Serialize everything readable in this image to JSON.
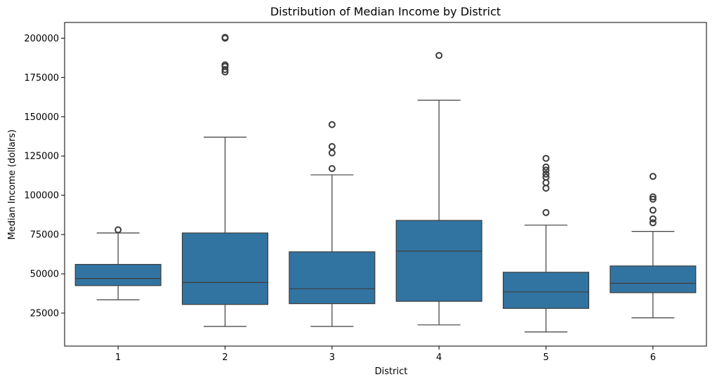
{
  "chart_data": {
    "type": "box",
    "title": "Distribution of Median Income by District",
    "xlabel": "District",
    "ylabel": "Median Income (dollars)",
    "categories": [
      "1",
      "2",
      "3",
      "4",
      "5",
      "6"
    ],
    "ylim": [
      4000,
      210000
    ],
    "yticks": [
      25000,
      50000,
      75000,
      100000,
      125000,
      150000,
      175000,
      200000
    ],
    "grid": false,
    "box_color": "#3274a1",
    "line_color": "#3d3d3d",
    "boxes": [
      {
        "category": "1",
        "whisker_low": 33500,
        "q1": 42500,
        "median": 47000,
        "q3": 56000,
        "whisker_high": 76000,
        "outliers": [
          78000
        ]
      },
      {
        "category": "2",
        "whisker_low": 16500,
        "q1": 30500,
        "median": 44500,
        "q3": 76000,
        "whisker_high": 137000,
        "outliers": [
          178500,
          180000,
          182000,
          183000,
          200000,
          200500
        ]
      },
      {
        "category": "3",
        "whisker_low": 16500,
        "q1": 31000,
        "median": 40500,
        "q3": 64000,
        "whisker_high": 113000,
        "outliers": [
          117000,
          127000,
          131000,
          145000
        ]
      },
      {
        "category": "4",
        "whisker_low": 17500,
        "q1": 32500,
        "median": 64500,
        "q3": 84000,
        "whisker_high": 160500,
        "outliers": [
          189000
        ]
      },
      {
        "category": "5",
        "whisker_low": 13000,
        "q1": 28000,
        "median": 38500,
        "q3": 51000,
        "whisker_high": 81000,
        "outliers": [
          89000,
          104500,
          108000,
          111500,
          113500,
          116000,
          118000,
          123500
        ]
      },
      {
        "category": "6",
        "whisker_low": 22000,
        "q1": 38000,
        "median": 44000,
        "q3": 55000,
        "whisker_high": 77000,
        "outliers": [
          82500,
          85000,
          90500,
          97500,
          99000,
          112000
        ]
      }
    ]
  }
}
